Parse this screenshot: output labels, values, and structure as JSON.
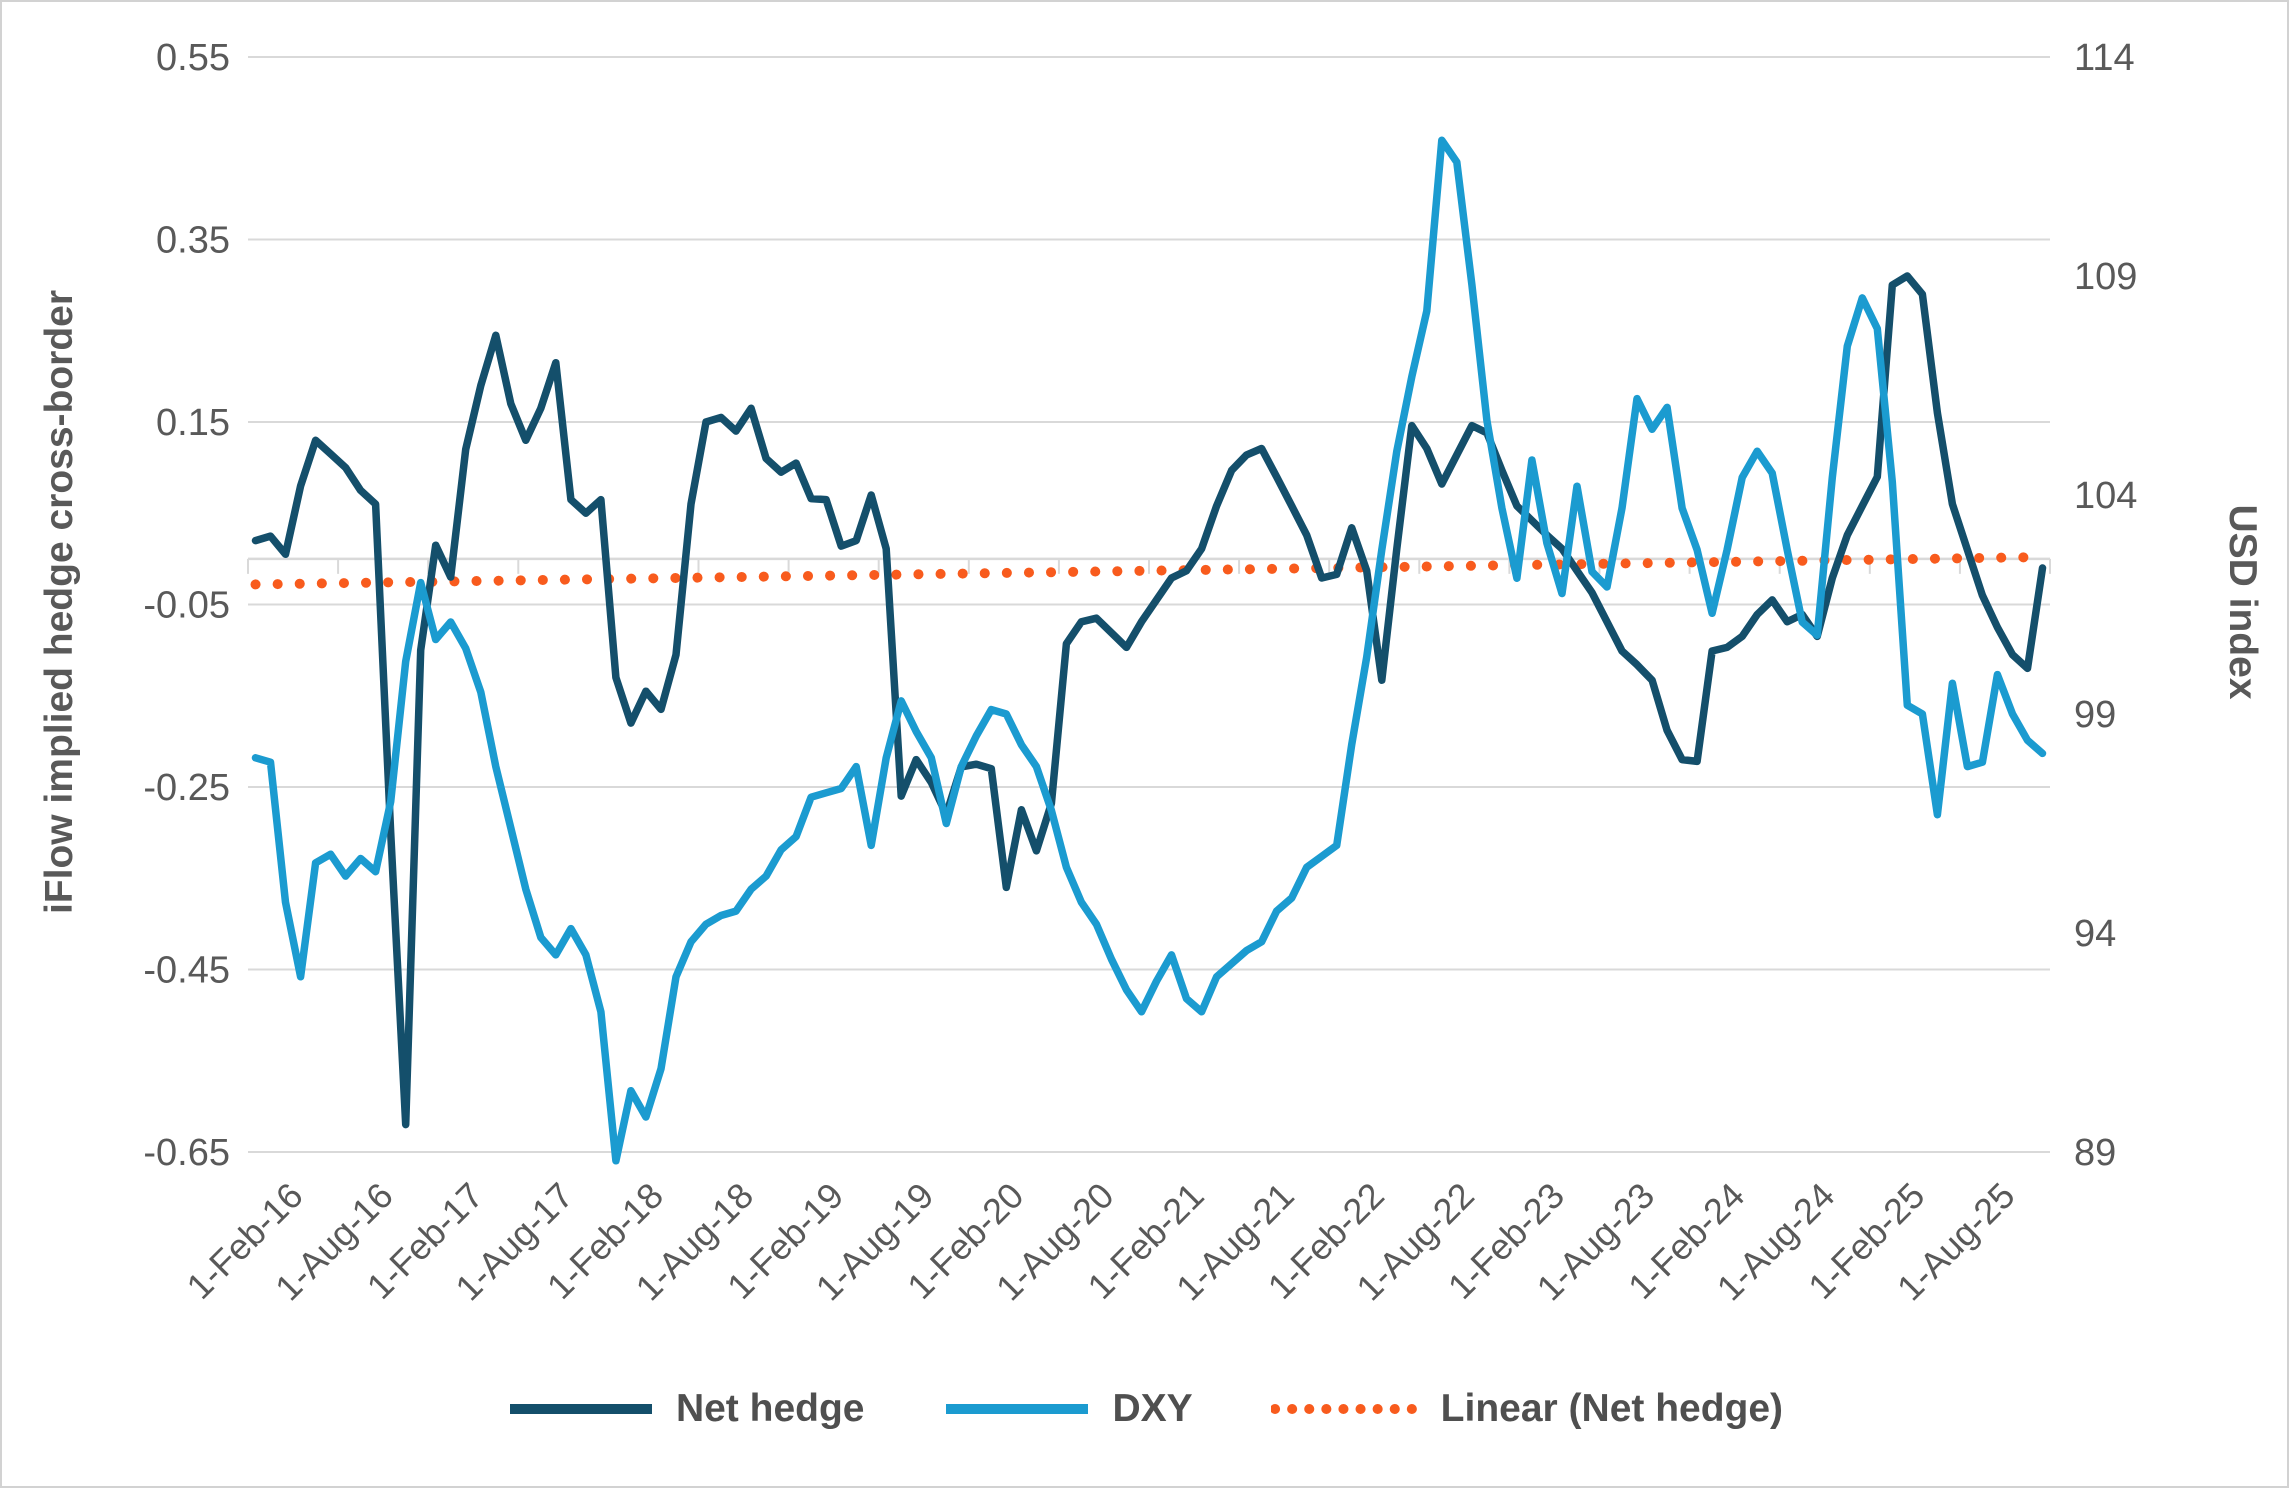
{
  "chart_data": {
    "type": "line",
    "title": "",
    "xlabel": "",
    "ylabel_left": "iFlow implied hedge cross-border",
    "ylabel_right": "USD index",
    "grid": true,
    "grid_color": "#d9d9d9",
    "text_color": "#595959",
    "legend_position": "bottom",
    "left_axis": {
      "title": "iFlow implied hedge cross-border",
      "ticks": [
        0.55,
        0.35,
        0.15,
        -0.05,
        -0.25,
        -0.45,
        -0.65
      ],
      "range": [
        -0.65,
        0.55
      ]
    },
    "right_axis": {
      "title": "USD index",
      "ticks": [
        114,
        109,
        104,
        99,
        94,
        89
      ],
      "range": [
        89,
        114
      ]
    },
    "x_tick_labels": [
      "1-Feb-16",
      "1-Aug-16",
      "1-Feb-17",
      "1-Aug-17",
      "1-Feb-18",
      "1-Aug-18",
      "1-Feb-19",
      "1-Aug-19",
      "1-Feb-20",
      "1-Aug-20",
      "1-Feb-21",
      "1-Aug-21",
      "1-Feb-22",
      "1-Aug-22",
      "1-Feb-23",
      "1-Aug-23",
      "1-Feb-24",
      "1-Aug-24",
      "1-Feb-25",
      "1-Aug-25"
    ],
    "x_start": "Feb-2016",
    "x_frequency": "monthly",
    "series": [
      {
        "name": "Net hedge",
        "axis": "left",
        "color": "#144f6b",
        "values": [
          0.02,
          0.025,
          0.005,
          0.08,
          0.13,
          0.115,
          0.1,
          0.075,
          0.06,
          -0.3,
          -0.62,
          -0.1,
          0.015,
          -0.02,
          0.12,
          0.19,
          0.245,
          0.17,
          0.13,
          0.165,
          0.215,
          0.065,
          0.05,
          0.065,
          -0.13,
          -0.18,
          -0.145,
          -0.165,
          -0.105,
          0.06,
          0.15,
          0.155,
          0.14,
          0.165,
          0.11,
          0.095,
          0.105,
          0.066,
          0.065,
          0.014,
          0.02,
          0.07,
          0.011,
          -0.26,
          -0.22,
          -0.245,
          -0.28,
          -0.228,
          -0.225,
          -0.23,
          -0.36,
          -0.275,
          -0.32,
          -0.268,
          -0.093,
          -0.069,
          -0.065,
          -0.081,
          -0.097,
          -0.069,
          -0.045,
          -0.021,
          -0.013,
          0.011,
          0.058,
          0.097,
          0.114,
          0.121,
          0.09,
          0.058,
          0.026,
          -0.021,
          -0.017,
          0.034,
          -0.013,
          -0.133,
          0.011,
          0.146,
          0.121,
          0.082,
          0.114,
          0.146,
          0.138,
          0.097,
          0.058,
          0.042,
          0.026,
          0.011,
          -0.013,
          -0.037,
          -0.069,
          -0.101,
          -0.116,
          -0.133,
          -0.188,
          -0.22,
          -0.222,
          -0.101,
          -0.097,
          -0.085,
          -0.061,
          -0.045,
          -0.069,
          -0.061,
          -0.085,
          -0.021,
          0.026,
          0.058,
          0.09,
          0.3,
          0.31,
          0.29,
          0.16,
          0.06,
          0.01,
          -0.04,
          -0.075,
          -0.105,
          -0.12,
          -0.01
        ]
      },
      {
        "name": "DXY",
        "axis": "right",
        "color": "#1b9bd0",
        "values": [
          98.0,
          97.9,
          94.7,
          93.0,
          95.6,
          95.8,
          95.3,
          95.7,
          95.4,
          97.0,
          100.2,
          102.0,
          100.7,
          101.1,
          100.5,
          99.5,
          97.8,
          96.4,
          95.0,
          93.9,
          93.5,
          94.1,
          93.5,
          92.2,
          88.8,
          90.4,
          89.8,
          90.9,
          93.0,
          93.8,
          94.2,
          94.4,
          94.5,
          95.0,
          95.3,
          95.9,
          96.2,
          97.1,
          97.2,
          97.3,
          97.8,
          96.0,
          98.0,
          99.3,
          98.6,
          98.0,
          96.5,
          97.8,
          98.5,
          99.1,
          99.0,
          98.3,
          97.8,
          96.8,
          95.5,
          94.7,
          94.2,
          93.4,
          92.7,
          92.2,
          92.9,
          93.5,
          92.5,
          92.2,
          93.0,
          93.3,
          93.6,
          93.8,
          94.5,
          94.8,
          95.5,
          95.75,
          96.0,
          98.3,
          100.3,
          102.75,
          105.0,
          106.7,
          108.2,
          112.1,
          111.6,
          108.8,
          105.7,
          103.7,
          102.1,
          104.8,
          102.9,
          101.75,
          104.2,
          102.25,
          101.9,
          103.7,
          106.2,
          105.5,
          106.0,
          103.7,
          102.75,
          101.3,
          102.75,
          104.4,
          105.0,
          104.5,
          102.75,
          101.1,
          100.8,
          104.4,
          107.4,
          108.5,
          107.8,
          104.3,
          99.2,
          99.0,
          96.7,
          99.7,
          97.8,
          97.9,
          99.9,
          99.0,
          98.4,
          98.1
        ]
      }
    ],
    "trendline": {
      "name": "Linear (Net hedge)",
      "axis": "left",
      "color": "#f85b1d",
      "style": "dotted",
      "start_value": -0.028,
      "end_value": 0.002
    },
    "legend": [
      {
        "label": "Net hedge",
        "color": "#144f6b",
        "style": "solid"
      },
      {
        "label": "DXY",
        "color": "#1b9bd0",
        "style": "solid"
      },
      {
        "label": "Linear (Net hedge)",
        "color": "#f85b1d",
        "style": "dotted"
      }
    ]
  }
}
